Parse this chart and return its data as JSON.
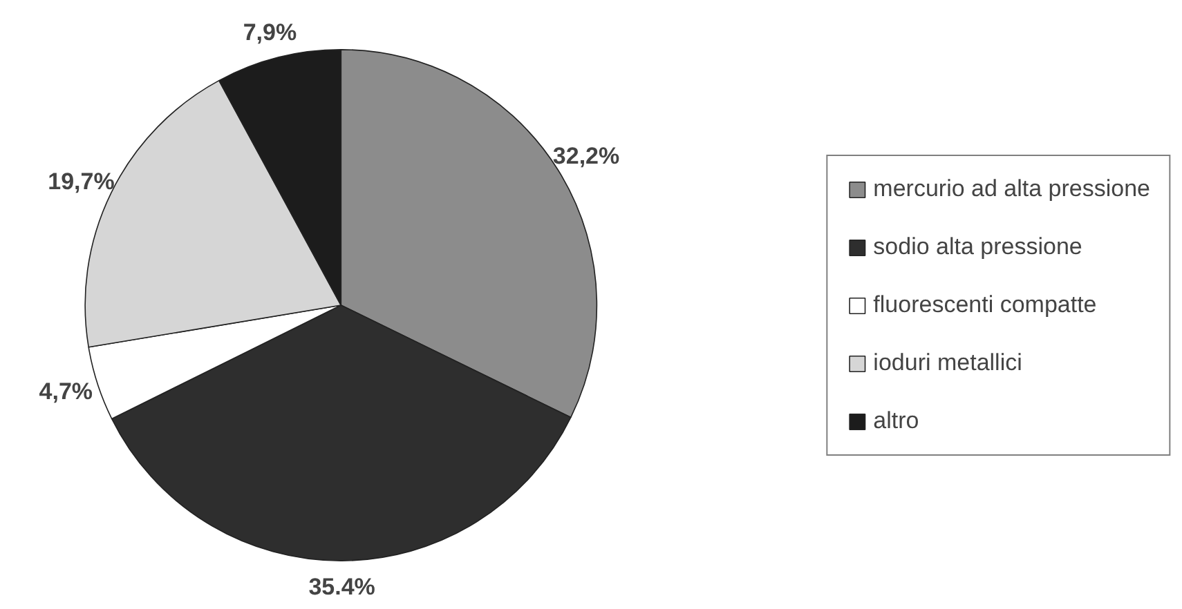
{
  "chart_data": {
    "type": "pie",
    "categories": [
      "mercurio ad alta pressione",
      "sodio alta pressione",
      "fluorescenti compatte",
      "ioduri metallici",
      "altro"
    ],
    "values": [
      32.2,
      35.4,
      4.7,
      19.7,
      7.9
    ],
    "value_labels": [
      "32,2%",
      "35.4%",
      "4,7%",
      "19,7%",
      "7,9%"
    ],
    "colors": [
      "#8c8c8c",
      "#2e2e2e",
      "#ffffff",
      "#d6d6d6",
      "#1c1c1c"
    ],
    "legend": "right"
  }
}
